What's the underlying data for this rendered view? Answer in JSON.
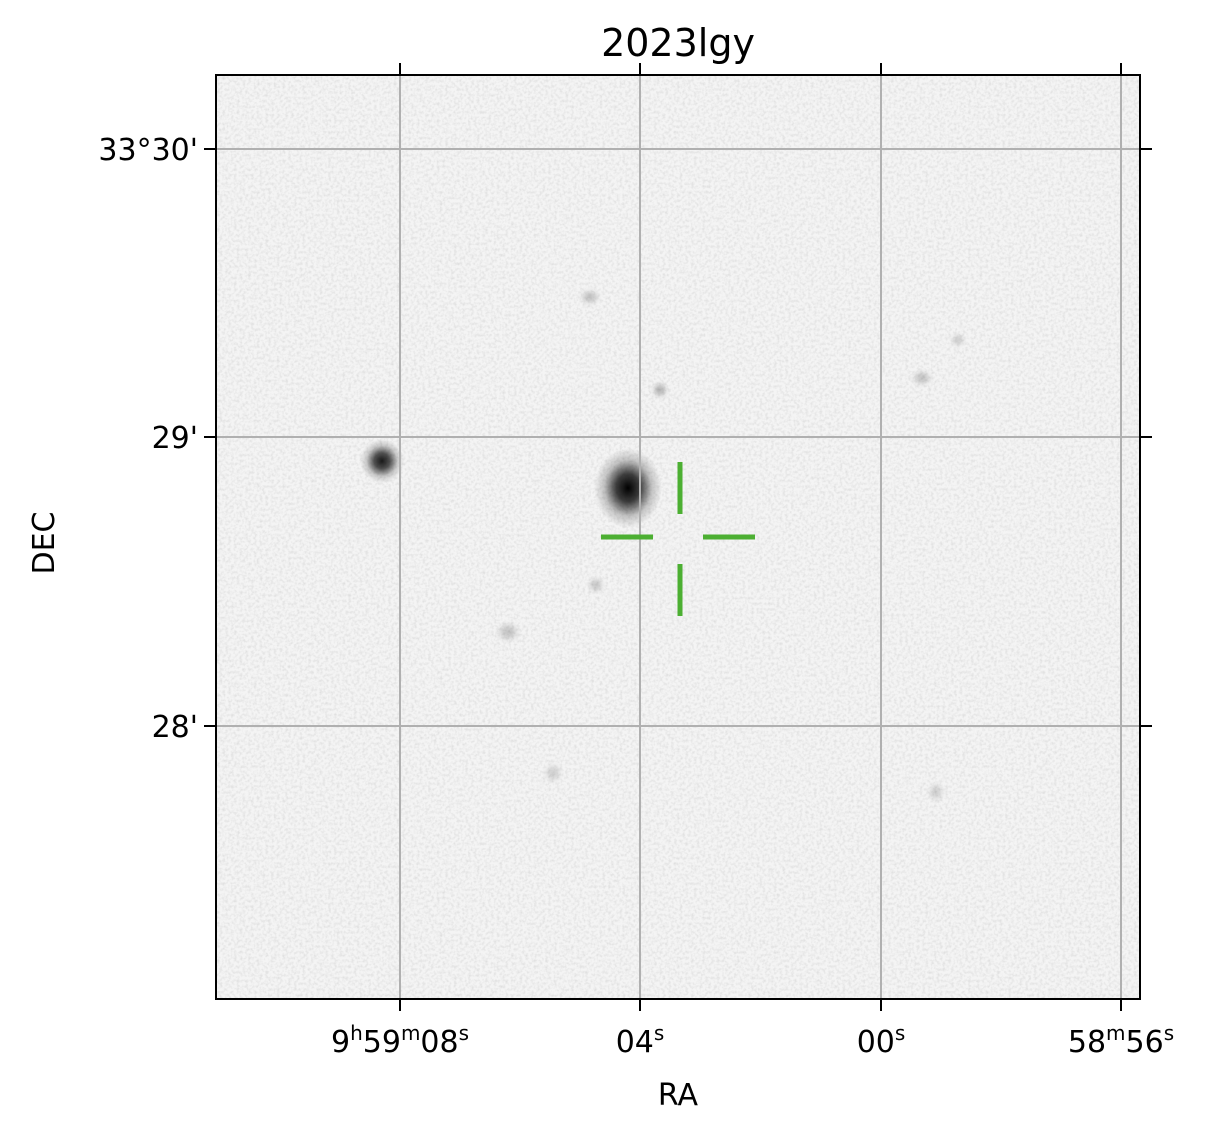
{
  "title": "2023lgy",
  "axes": {
    "x_label": "RA",
    "y_label": "DEC",
    "x_ticks": [
      {
        "parts": [
          [
            "9",
            ""
          ],
          [
            "h",
            "sup"
          ],
          [
            "59",
            ""
          ],
          [
            "m",
            "sup"
          ],
          [
            "08",
            ""
          ],
          [
            "s",
            "sup"
          ]
        ]
      },
      {
        "parts": [
          [
            "04",
            ""
          ],
          [
            "s",
            "sup"
          ]
        ]
      },
      {
        "parts": [
          [
            "00",
            ""
          ],
          [
            "s",
            "sup"
          ]
        ]
      },
      {
        "parts": [
          [
            "58",
            ""
          ],
          [
            "m",
            "sup"
          ],
          [
            "56",
            ""
          ],
          [
            "s",
            "sup"
          ]
        ]
      }
    ],
    "y_ticks": [
      "33°30'",
      "29'",
      "28'"
    ],
    "grid": true
  },
  "image": {
    "colormap": "grayscale-inverted",
    "sources": [
      {
        "kind": "host-galaxy",
        "intensity": 1.0
      },
      {
        "kind": "star",
        "intensity": 0.9
      },
      {
        "kind": "faint-source",
        "intensity": 0.25
      },
      {
        "kind": "faint-source",
        "intensity": 0.2
      },
      {
        "kind": "faint-source",
        "intensity": 0.2
      },
      {
        "kind": "faint-source",
        "intensity": 0.2
      },
      {
        "kind": "faint-source",
        "intensity": 0.18
      },
      {
        "kind": "faint-source",
        "intensity": 0.15
      },
      {
        "kind": "faint-source",
        "intensity": 0.15
      },
      {
        "kind": "faint-source",
        "intensity": 0.15
      }
    ]
  },
  "marker": {
    "type": "crosshair",
    "color": "#4caf32"
  }
}
